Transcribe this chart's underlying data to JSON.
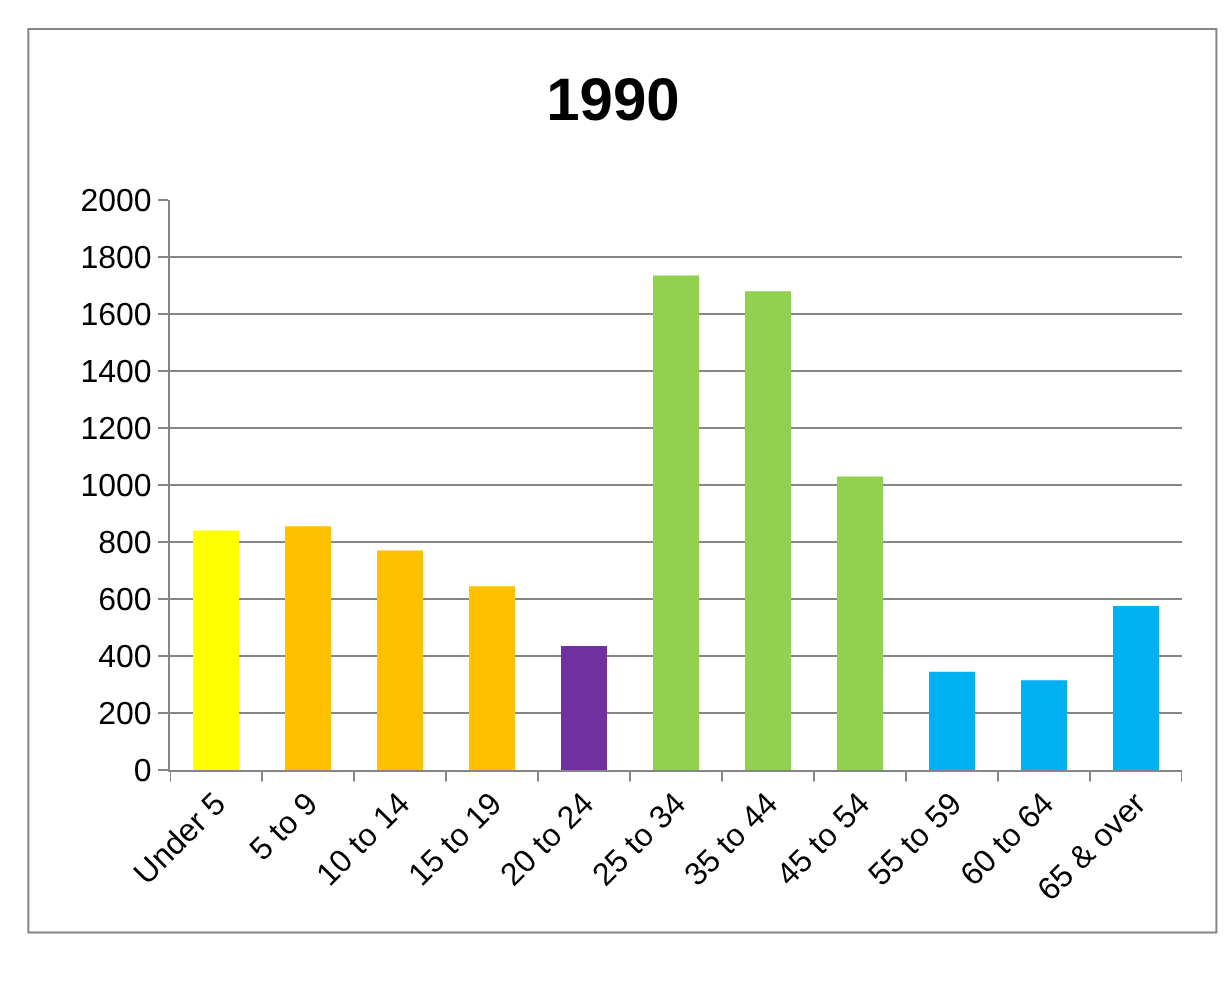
{
  "chart_data": {
    "type": "bar",
    "title": "1990",
    "categories": [
      "Under 5",
      "5 to 9",
      "10 to 14",
      "15 to 19",
      "20 to 24",
      "25 to 34",
      "35 to 44",
      "45 to 54",
      "55 to 59",
      "60 to 64",
      "65 & over"
    ],
    "values": [
      840,
      855,
      770,
      645,
      435,
      1735,
      1680,
      1030,
      345,
      315,
      575
    ],
    "colors": [
      "#ffff00",
      "#ffc000",
      "#ffc000",
      "#ffc000",
      "#7030a0",
      "#92d050",
      "#92d050",
      "#92d050",
      "#00b0f0",
      "#00b0f0",
      "#00b0f0"
    ],
    "ylim": [
      0,
      2000
    ],
    "yticks": [
      0,
      200,
      400,
      600,
      800,
      1000,
      1200,
      1400,
      1600,
      1800,
      2000
    ],
    "grid": "y"
  }
}
